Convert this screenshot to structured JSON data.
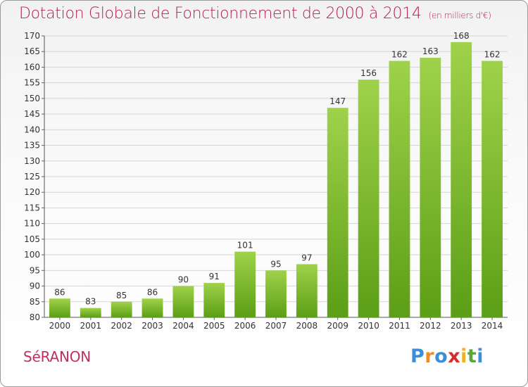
{
  "title": "Dotation Globale de Fonctionnement de 2000 à 2014",
  "unit": "(en milliers d'€)",
  "town": "SéRANON",
  "logo": {
    "text": "Proxiti",
    "letters": [
      "P",
      "r",
      "o",
      "x",
      "i",
      "t",
      "i"
    ],
    "colors": [
      "#3a8fd6",
      "#f28c1c",
      "#3a8fd6",
      "#d82c2c",
      "#f2b21c",
      "#5aa63a",
      "#3a8fd6"
    ]
  },
  "colors": {
    "title": "#b0204e",
    "bar_top": "#9fd24a",
    "bar_bottom": "#5c9e17",
    "grid": "#d5d5d5"
  },
  "chart_data": {
    "type": "bar",
    "title": "Dotation Globale de Fonctionnement de 2000 à 2014",
    "subtitle": "(en milliers d'€)",
    "categories": [
      "2000",
      "2001",
      "2002",
      "2003",
      "2004",
      "2005",
      "2006",
      "2007",
      "2008",
      "2009",
      "2010",
      "2011",
      "2012",
      "2013",
      "2014"
    ],
    "values": [
      86,
      83,
      85,
      86,
      90,
      91,
      101,
      95,
      97,
      147,
      156,
      162,
      163,
      168,
      162
    ],
    "xlabel": "",
    "ylabel": "",
    "ylim": [
      80,
      170
    ],
    "yticks": [
      80,
      85,
      90,
      95,
      100,
      105,
      110,
      115,
      120,
      125,
      130,
      135,
      140,
      145,
      150,
      155,
      160,
      165,
      170
    ],
    "grid": true,
    "data_labels": true
  }
}
